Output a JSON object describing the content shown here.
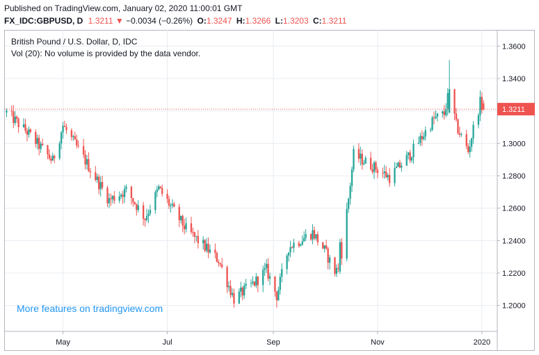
{
  "header": {
    "published": "Published on TradingView.com, January 02, 2020 11:00:01 GMT",
    "symbol": "FX_IDC:GBPUSD, D",
    "last": "1.3211",
    "change_arrow": "▼",
    "change": "−0.0034 (−0.26%)",
    "o_label": "O:",
    "o": "1.3247",
    "h_label": "H:",
    "h": "1.3266",
    "l_label": "L:",
    "l": "1.3203",
    "c_label": "C:",
    "c": "1.3211"
  },
  "legend": {
    "title": "British Pound / U.S. Dollar, D, IDC",
    "volume": "Vol (20): No volume is provided by the data vendor."
  },
  "promo": "More features on tradingview.com",
  "last_price_label": "1.3211",
  "colors": {
    "up": "#26a69a",
    "down": "#ef5350",
    "grid": "#e9ecf2",
    "axis": "#b2b5be",
    "price_line": "#ef5350",
    "promo": "#2196f3"
  },
  "chart_data": {
    "type": "candlestick",
    "title": "British Pound / U.S. Dollar, D, IDC",
    "x_ticks": [
      "May",
      "Jul",
      "Sep",
      "Nov",
      "2020"
    ],
    "y_ticks": [
      "1.3600",
      "1.3400",
      "1.3200",
      "1.3000",
      "1.2800",
      "1.2600",
      "1.2400",
      "1.2200",
      "1.2000"
    ],
    "ylim": [
      1.184,
      1.37
    ],
    "last_price": 1.3211,
    "grid": true,
    "price_anchors": [
      {
        "date": "2019-03-29",
        "price": 1.319
      },
      {
        "date": "2019-04-10",
        "price": 1.307
      },
      {
        "date": "2019-04-25",
        "price": 1.289
      },
      {
        "date": "2019-05-01",
        "price": 1.311
      },
      {
        "date": "2019-05-13",
        "price": 1.291
      },
      {
        "date": "2019-05-28",
        "price": 1.265
      },
      {
        "date": "2019-06-07",
        "price": 1.271
      },
      {
        "date": "2019-06-18",
        "price": 1.254
      },
      {
        "date": "2019-06-26",
        "price": 1.272
      },
      {
        "date": "2019-07-12",
        "price": 1.247
      },
      {
        "date": "2019-07-31",
        "price": 1.228
      },
      {
        "date": "2019-08-09",
        "price": 1.204
      },
      {
        "date": "2019-08-21",
        "price": 1.214
      },
      {
        "date": "2019-08-28",
        "price": 1.222
      },
      {
        "date": "2019-09-03",
        "price": 1.206
      },
      {
        "date": "2019-09-10",
        "price": 1.236
      },
      {
        "date": "2019-09-24",
        "price": 1.245
      },
      {
        "date": "2019-10-01",
        "price": 1.234
      },
      {
        "date": "2019-10-07",
        "price": 1.221
      },
      {
        "date": "2019-10-10",
        "price": 1.224
      },
      {
        "date": "2019-10-15",
        "price": 1.266
      },
      {
        "date": "2019-10-18",
        "price": 1.293
      },
      {
        "date": "2019-10-29",
        "price": 1.286
      },
      {
        "date": "2019-11-08",
        "price": 1.279
      },
      {
        "date": "2019-11-20",
        "price": 1.293
      },
      {
        "date": "2019-12-04",
        "price": 1.315
      },
      {
        "date": "2019-12-10",
        "price": 1.318
      },
      {
        "date": "2019-12-13",
        "price": 1.333
      },
      {
        "date": "2019-12-17",
        "price": 1.311
      },
      {
        "date": "2019-12-24",
        "price": 1.295
      },
      {
        "date": "2019-12-27",
        "price": 1.309
      },
      {
        "date": "2019-12-31",
        "price": 1.325
      },
      {
        "date": "2020-01-02",
        "price": 1.3211
      }
    ],
    "big_days": [
      {
        "date": "2019-10-10",
        "open": 1.2209,
        "high": 1.241,
        "low": 1.2195,
        "close": 1.239
      },
      {
        "date": "2019-12-13",
        "open": 1.319,
        "high": 1.3514,
        "low": 1.3185,
        "close": 1.3334
      }
    ],
    "last_candle": {
      "date": "2020-01-02",
      "open": 1.3247,
      "high": 1.3266,
      "low": 1.3203,
      "close": 1.3211
    }
  }
}
